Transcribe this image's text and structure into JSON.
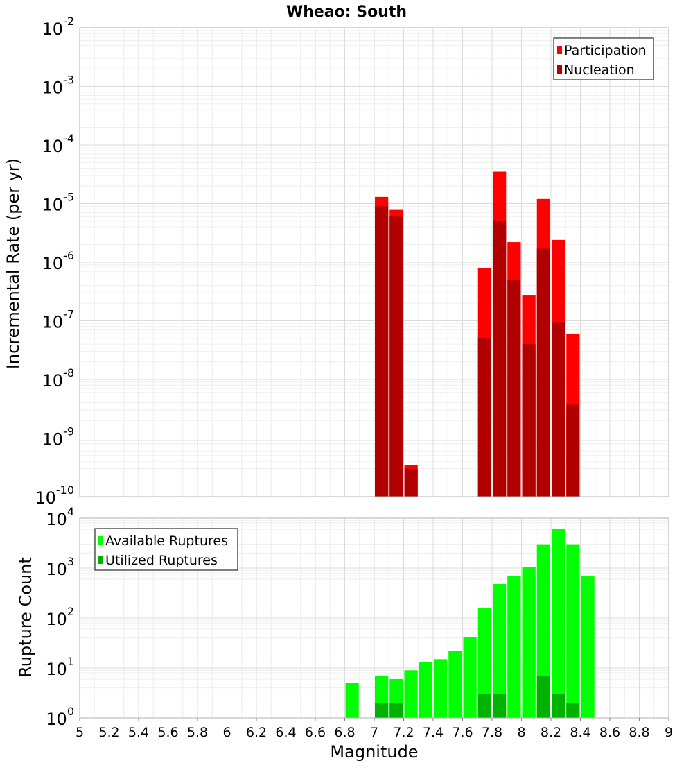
{
  "chart_data": [
    {
      "type": "bar",
      "title": "Wheao: South",
      "ylabel": "Incremental Rate (per yr)",
      "xlabel": "",
      "yscale": "log",
      "ylim_exp": [
        -10,
        -2
      ],
      "xlim": [
        5,
        9
      ],
      "grid": true,
      "legend_position": "top-right",
      "bin_width": 0.1,
      "series": [
        {
          "name": "Participation",
          "color": "#ff0000",
          "x": [
            7.05,
            7.15,
            7.25,
            7.75,
            7.85,
            7.95,
            8.05,
            8.15,
            8.25,
            8.35
          ],
          "values": [
            1.3e-05,
            7.8e-06,
            3.5e-10,
            8e-07,
            3.5e-05,
            2.2e-06,
            2.7e-07,
            1.2e-05,
            2.4e-06,
            6e-08
          ]
        },
        {
          "name": "Nucleation",
          "color": "#b20000",
          "x": [
            7.05,
            7.15,
            7.25,
            7.75,
            7.85,
            7.95,
            8.05,
            8.15,
            8.25,
            8.35
          ],
          "values": [
            9e-06,
            6e-06,
            3e-10,
            5e-08,
            5e-06,
            5e-07,
            4e-08,
            1.7e-06,
            9.5e-08,
            3.7e-09
          ]
        }
      ]
    },
    {
      "type": "bar",
      "title": "",
      "ylabel": "Rupture Count",
      "xlabel": "Magnitude",
      "yscale": "log",
      "ylim_exp": [
        0,
        4
      ],
      "xlim": [
        5,
        9
      ],
      "xticks": [
        "5",
        "5.2",
        "5.4",
        "5.6",
        "5.8",
        "6",
        "6.2",
        "6.4",
        "6.6",
        "6.8",
        "7",
        "7.2",
        "7.4",
        "7.6",
        "7.8",
        "8",
        "8.2",
        "8.4",
        "8.6",
        "8.8",
        "9"
      ],
      "grid": true,
      "legend_position": "top-left",
      "bin_width": 0.1,
      "series": [
        {
          "name": "Available Ruptures",
          "color": "#00ff00",
          "x": [
            6.85,
            7.05,
            7.15,
            7.25,
            7.35,
            7.45,
            7.55,
            7.65,
            7.75,
            7.85,
            7.95,
            8.05,
            8.15,
            8.25,
            8.35,
            8.45
          ],
          "values": [
            5,
            7,
            6,
            9,
            13,
            15,
            22,
            42,
            160,
            480,
            700,
            1050,
            3000,
            6000,
            3000,
            680
          ]
        },
        {
          "name": "Utilized Ruptures",
          "color": "#00b200",
          "x": [
            7.05,
            7.15,
            7.25,
            7.75,
            7.85,
            7.95,
            8.05,
            8.15,
            8.25,
            8.35
          ],
          "values": [
            2,
            2,
            1,
            3,
            3,
            1,
            1,
            7,
            3,
            2
          ]
        }
      ]
    }
  ]
}
